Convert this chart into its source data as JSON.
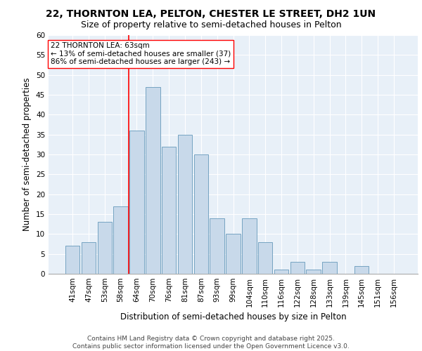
{
  "title_line1": "22, THORNTON LEA, PELTON, CHESTER LE STREET, DH2 1UN",
  "title_line2": "Size of property relative to semi-detached houses in Pelton",
  "xlabel": "Distribution of semi-detached houses by size in Pelton",
  "ylabel": "Number of semi-detached properties",
  "categories": [
    "41sqm",
    "47sqm",
    "53sqm",
    "58sqm",
    "64sqm",
    "70sqm",
    "76sqm",
    "81sqm",
    "87sqm",
    "93sqm",
    "99sqm",
    "104sqm",
    "110sqm",
    "116sqm",
    "122sqm",
    "128sqm",
    "133sqm",
    "139sqm",
    "145sqm",
    "151sqm",
    "156sqm"
  ],
  "values": [
    7,
    8,
    13,
    17,
    36,
    47,
    32,
    35,
    30,
    14,
    10,
    14,
    8,
    1,
    3,
    1,
    3,
    0,
    2,
    0,
    0
  ],
  "bar_color": "#c8d9ea",
  "bar_edge_color": "#6699bb",
  "highlight_line_color": "red",
  "annotation_text": "22 THORNTON LEA: 63sqm\n← 13% of semi-detached houses are smaller (37)\n86% of semi-detached houses are larger (243) →",
  "annotation_box_color": "white",
  "annotation_box_edge": "red",
  "ylim": [
    0,
    60
  ],
  "yticks": [
    0,
    5,
    10,
    15,
    20,
    25,
    30,
    35,
    40,
    45,
    50,
    55,
    60
  ],
  "background_color": "#e8f0f8",
  "footer_text": "Contains HM Land Registry data © Crown copyright and database right 2025.\nContains public sector information licensed under the Open Government Licence v3.0.",
  "title_fontsize": 10,
  "subtitle_fontsize": 9,
  "axis_label_fontsize": 8.5,
  "tick_fontsize": 7.5,
  "annotation_fontsize": 7.5,
  "footer_fontsize": 6.5
}
